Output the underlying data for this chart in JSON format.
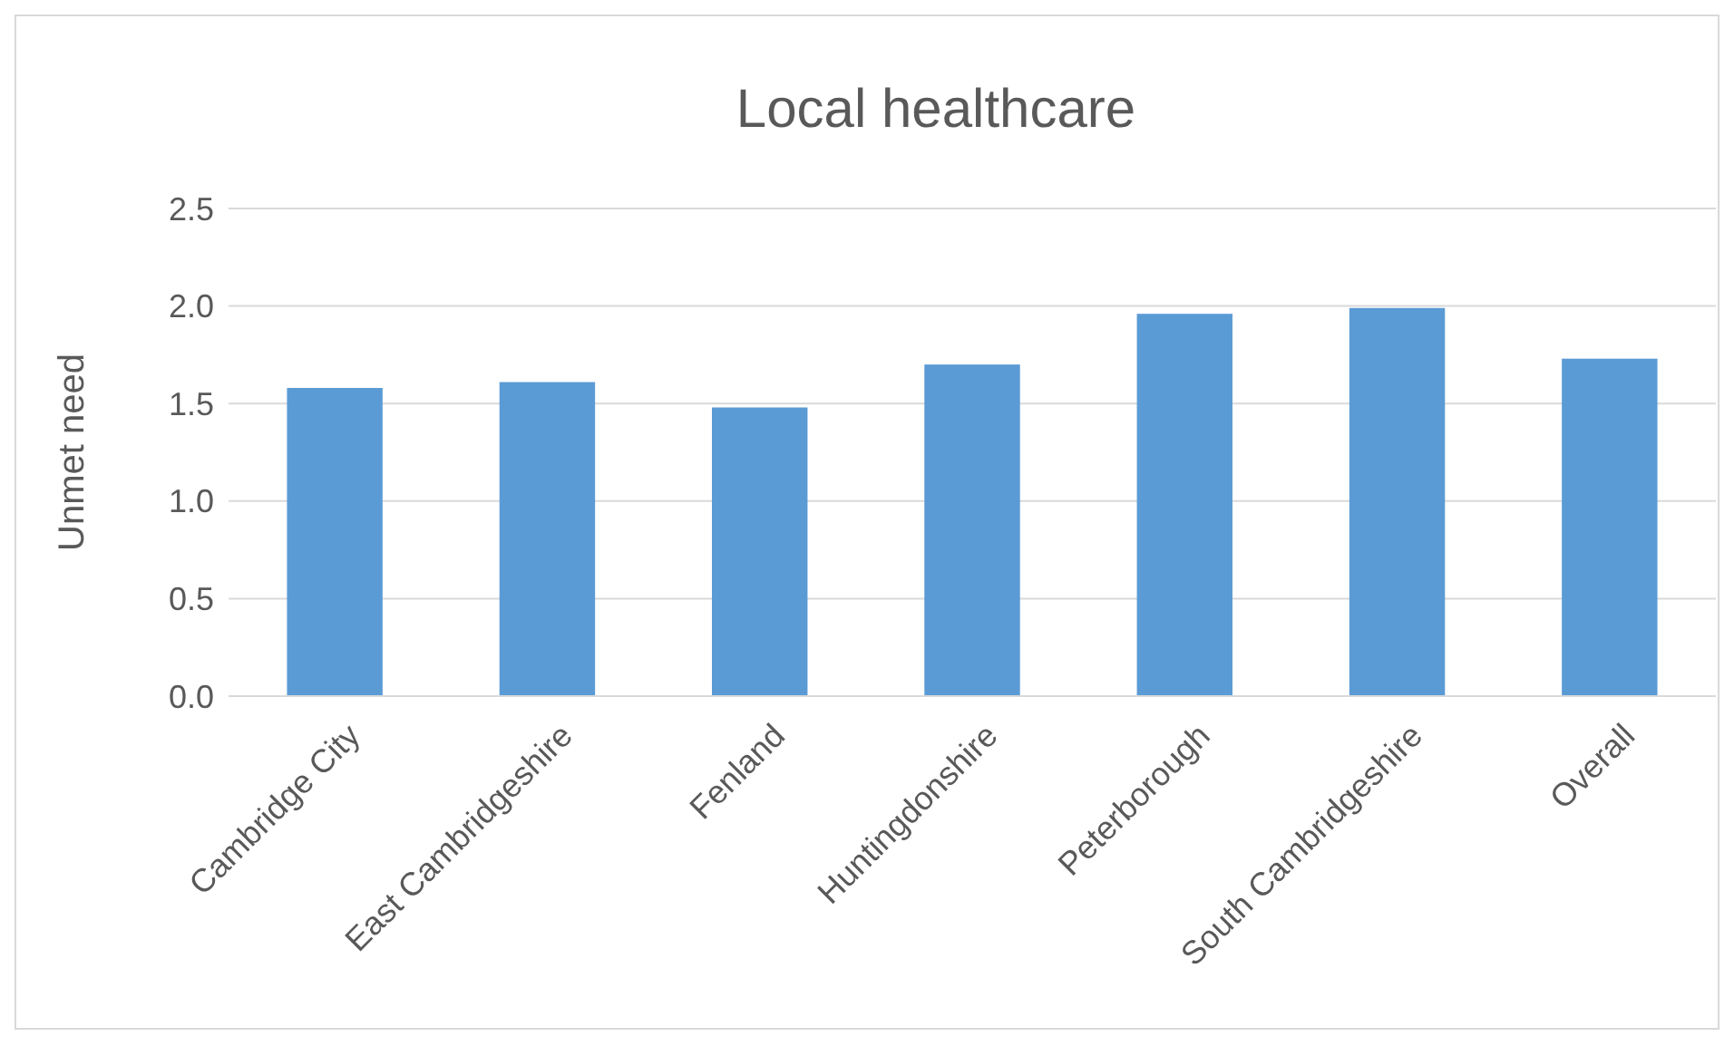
{
  "chart_data": {
    "type": "bar",
    "title": "Local healthcare",
    "ylabel": "Unmet need",
    "categories": [
      "Cambridge City",
      "East Cambridgeshire",
      "Fenland",
      "Huntingdonshire",
      "Peterborough",
      "South Cambridgeshire",
      "Overall"
    ],
    "values": [
      1.58,
      1.61,
      1.48,
      1.7,
      1.96,
      1.99,
      1.73
    ],
    "color": "#5b9bd5",
    "ylim": [
      0,
      2.5
    ],
    "yticks": [
      {
        "value": 0,
        "label": "0.0"
      },
      {
        "value": 0.5,
        "label": "0.5"
      },
      {
        "value": 1,
        "label": "1.0"
      },
      {
        "value": 1.5,
        "label": "1.5"
      },
      {
        "value": 2,
        "label": "2.0"
      },
      {
        "value": 2.5,
        "label": "2.5"
      }
    ],
    "grid": "y"
  }
}
